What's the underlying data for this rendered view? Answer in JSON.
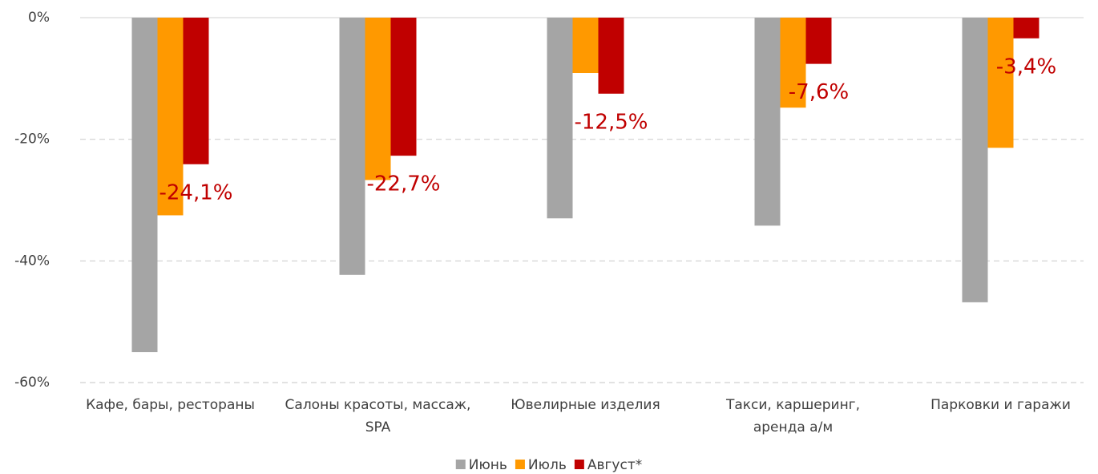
{
  "chart_data": {
    "type": "bar",
    "categories": [
      [
        "Кафе, бары, рестораны"
      ],
      [
        "Салоны красоты, массаж,",
        "SPA"
      ],
      [
        "Ювелирные изделия"
      ],
      [
        "Такси, каршеринг,",
        "аренда а/м"
      ],
      [
        "Парковки и гаражи"
      ]
    ],
    "series": [
      {
        "name": "Июнь",
        "color": "#a5a5a5",
        "values": [
          -55.0,
          -42.3,
          -33.0,
          -34.2,
          -46.8
        ]
      },
      {
        "name": "Июль",
        "color": "#ff9900",
        "values": [
          -32.5,
          -26.7,
          -9.1,
          -14.8,
          -21.4
        ]
      },
      {
        "name": "Август*",
        "color": "#c00000",
        "values": [
          -24.1,
          -22.7,
          -12.5,
          -7.6,
          -3.4
        ],
        "value_labels": [
          "-24,1%",
          "-22,7%",
          "-12,5%",
          "-7,6%",
          "-3,4%"
        ]
      }
    ],
    "ylim": [
      -60,
      0
    ],
    "yticks": [
      {
        "value": 0,
        "label": "0%"
      },
      {
        "value": -20,
        "label": "-20%"
      },
      {
        "value": -40,
        "label": "-40%"
      },
      {
        "value": -60,
        "label": "-60%"
      }
    ],
    "grid": true,
    "legend": "bottom"
  }
}
